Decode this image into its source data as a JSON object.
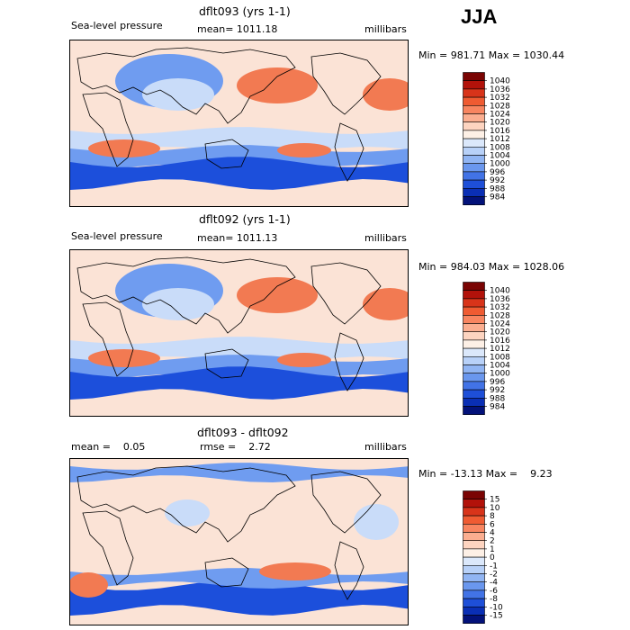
{
  "season": "JJA",
  "panels": [
    {
      "title": "dflt093 (yrs 1-1)",
      "variable": "Sea-level pressure",
      "stat": "mean= 1011.18",
      "units": "millibars",
      "minmax": "Min = 981.71 Max = 1030.44",
      "colorbar": {
        "labels": [
          "1040",
          "1036",
          "1032",
          "1028",
          "1024",
          "1020",
          "1016",
          "1012",
          "1008",
          "1004",
          "1000",
          "996",
          "992",
          "988",
          "984"
        ],
        "colors": [
          "#7a0403",
          "#b2120a",
          "#d8341a",
          "#ef5b32",
          "#f88560",
          "#fbae90",
          "#fdd4c0",
          "#fdf0e6",
          "#dbe8fb",
          "#b8d1f8",
          "#91b5f3",
          "#6a97ee",
          "#4273e6",
          "#1e4fd8",
          "#0a2fb5",
          "#03127a"
        ]
      },
      "map_colors": {
        "background": "#fbe3d6",
        "high": "#f27a52",
        "low": "#1c4fdb",
        "mid_low": "#6f9cf0",
        "pale_low": "#c9dcf9"
      }
    },
    {
      "title": "dflt092 (yrs 1-1)",
      "variable": "Sea-level pressure",
      "stat": "mean= 1011.13",
      "units": "millibars",
      "minmax": "Min = 984.03 Max = 1028.06",
      "colorbar": {
        "labels": [
          "1040",
          "1036",
          "1032",
          "1028",
          "1024",
          "1020",
          "1016",
          "1012",
          "1008",
          "1004",
          "1000",
          "996",
          "992",
          "988",
          "984"
        ],
        "colors": [
          "#7a0403",
          "#b2120a",
          "#d8341a",
          "#ef5b32",
          "#f88560",
          "#fbae90",
          "#fdd4c0",
          "#fdf0e6",
          "#dbe8fb",
          "#b8d1f8",
          "#91b5f3",
          "#6a97ee",
          "#4273e6",
          "#1e4fd8",
          "#0a2fb5",
          "#03127a"
        ]
      },
      "map_colors": {
        "background": "#fbe3d6",
        "high": "#f27a52",
        "low": "#1c4fdb",
        "mid_low": "#6f9cf0",
        "pale_low": "#c9dcf9"
      }
    },
    {
      "title": "dflt093 - dflt092",
      "variable": "mean =    0.05",
      "stat": "rmse =    2.72",
      "units": "millibars",
      "minmax": "Min = -13.13 Max =    9.23",
      "colorbar": {
        "labels": [
          "15",
          "10",
          "8",
          "6",
          "4",
          "2",
          "1",
          "0",
          "-1",
          "-2",
          "-4",
          "-6",
          "-8",
          "-10",
          "-15"
        ],
        "colors": [
          "#7a0403",
          "#b2120a",
          "#d8341a",
          "#ef5b32",
          "#f88560",
          "#fbae90",
          "#fdd4c0",
          "#fdf0e6",
          "#dbe8fb",
          "#b8d1f8",
          "#91b5f3",
          "#6a97ee",
          "#4273e6",
          "#1e4fd8",
          "#0a2fb5",
          "#03127a"
        ]
      },
      "map_colors": {
        "background": "#fbe3d6",
        "high": "#f27a52",
        "low": "#1c4fdb",
        "mid_low": "#6f9cf0",
        "pale_low": "#c9dcf9"
      }
    }
  ],
  "chart_data": [
    {
      "type": "heatmap",
      "title": "dflt093 (yrs 1-1)",
      "subtitle": "Sea-level pressure",
      "mean": 1011.18,
      "units": "millibars",
      "min": 981.71,
      "max": 1030.44,
      "contour_levels": [
        984,
        988,
        992,
        996,
        1000,
        1004,
        1008,
        1012,
        1016,
        1020,
        1024,
        1028,
        1032,
        1036,
        1040
      ],
      "season": "JJA"
    },
    {
      "type": "heatmap",
      "title": "dflt092 (yrs 1-1)",
      "subtitle": "Sea-level pressure",
      "mean": 1011.13,
      "units": "millibars",
      "min": 984.03,
      "max": 1028.06,
      "contour_levels": [
        984,
        988,
        992,
        996,
        1000,
        1004,
        1008,
        1012,
        1016,
        1020,
        1024,
        1028,
        1032,
        1036,
        1040
      ],
      "season": "JJA"
    },
    {
      "type": "heatmap",
      "title": "dflt093 - dflt092",
      "mean": 0.05,
      "rmse": 2.72,
      "units": "millibars",
      "min": -13.13,
      "max": 9.23,
      "contour_levels": [
        -15,
        -10,
        -8,
        -6,
        -4,
        -2,
        -1,
        0,
        1,
        2,
        4,
        6,
        8,
        10,
        15
      ],
      "season": "JJA"
    }
  ]
}
